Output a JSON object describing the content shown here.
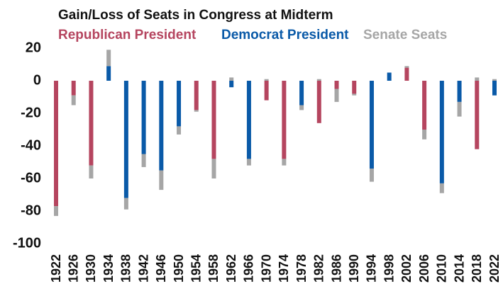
{
  "chart_data": {
    "type": "bar",
    "title": "Gain/Loss of Seats in Congress at Midterm",
    "categories": [
      "1922",
      "1926",
      "1930",
      "1934",
      "1938",
      "1942",
      "1946",
      "1950",
      "1954",
      "1958",
      "1962",
      "1966",
      "1970",
      "1974",
      "1978",
      "1982",
      "1986",
      "1990",
      "1994",
      "1998",
      "2002",
      "2006",
      "2010",
      "2014",
      "2018",
      "2022"
    ],
    "series": [
      {
        "name": "Republican President",
        "color": "#b5455f",
        "values": [
          -77,
          -9,
          -52,
          null,
          null,
          null,
          null,
          null,
          -18,
          -48,
          null,
          null,
          -12,
          -48,
          null,
          -26,
          -5,
          -8,
          null,
          null,
          8,
          -30,
          null,
          null,
          -42,
          null
        ]
      },
      {
        "name": "Democrat President",
        "color": "#0a5aa8",
        "values": [
          null,
          null,
          null,
          9,
          -72,
          -45,
          -55,
          -28,
          null,
          null,
          -4,
          -48,
          null,
          null,
          -15,
          null,
          null,
          null,
          -54,
          5,
          null,
          null,
          -63,
          -13,
          null,
          -9
        ]
      },
      {
        "name": "Senate Seats",
        "color": "#a6a6a6",
        "values": [
          -6,
          -6,
          -8,
          10,
          -7,
          -8,
          -12,
          -5,
          -1,
          -12,
          2,
          -4,
          1,
          -4,
          -3,
          1,
          -8,
          -1,
          -8,
          0,
          1,
          -6,
          -6,
          -9,
          2,
          1
        ]
      }
    ],
    "ylim": [
      -100,
      20
    ],
    "yticks": [
      -100,
      -80,
      -60,
      -40,
      -20,
      0,
      20
    ],
    "grid": false
  }
}
